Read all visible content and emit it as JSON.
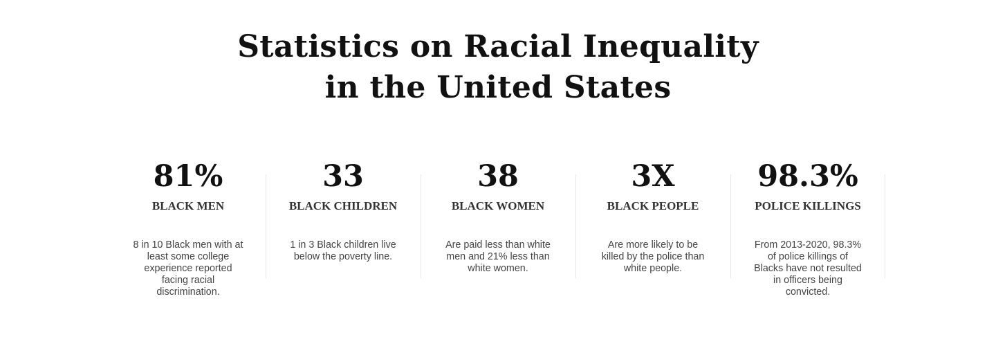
{
  "title": {
    "line1": "Statistics on Racial Inequality",
    "line2": "in the United States"
  },
  "stats": [
    {
      "value": "81%",
      "label": "BLACK MEN",
      "description": "8 in 10 Black men with at least some college experience reported facing racial discrimination."
    },
    {
      "value": "33",
      "label": "BLACK CHILDREN",
      "description": "1 in 3 Black children live below the poverty line."
    },
    {
      "value": "38",
      "label": "BLACK WOMEN",
      "description": "Are paid less than white men and 21% less than white women."
    },
    {
      "value": "3X",
      "label": "BLACK PEOPLE",
      "description": "Are more likely to be killed by the police than white people."
    },
    {
      "value": "98.3%",
      "label": "POLICE KILLINGS",
      "description": "From 2013-2020, 98.3% of police killings of Blacks have not resulted in officers being convicted."
    }
  ]
}
